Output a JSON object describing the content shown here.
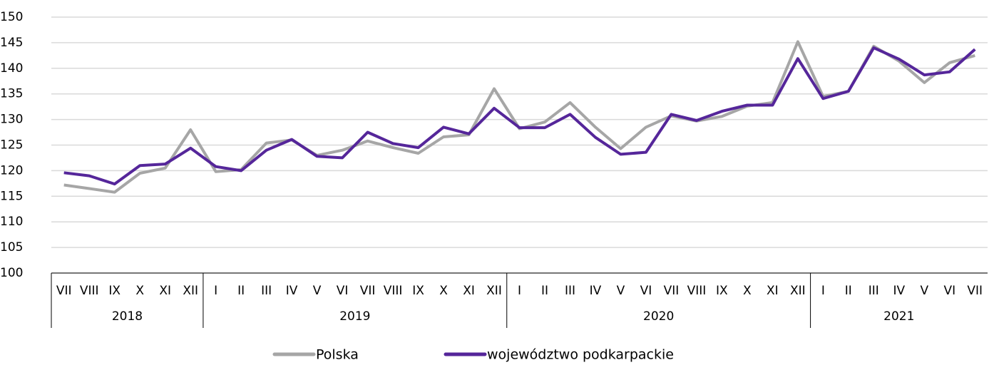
{
  "chart_data": {
    "type": "line",
    "groups": [
      {
        "name": "2018",
        "categories": [
          "VII",
          "VIII",
          "IX",
          "X",
          "XI",
          "XII"
        ]
      },
      {
        "name": "2019",
        "categories": [
          "I",
          "II",
          "III",
          "IV",
          "V",
          "VI",
          "VII",
          "VIII",
          "IX",
          "X",
          "XI",
          "XII"
        ]
      },
      {
        "name": "2020",
        "categories": [
          "I",
          "II",
          "III",
          "IV",
          "V",
          "VI",
          "VII",
          "VIII",
          "IX",
          "X",
          "XI",
          "XII"
        ]
      },
      {
        "name": "2021",
        "categories": [
          "I",
          "II",
          "III",
          "IV",
          "V",
          "VI",
          "VII"
        ]
      }
    ],
    "series": [
      {
        "name": "Polska",
        "color": "#a6a6a6",
        "values": [
          117.2,
          116.5,
          115.8,
          119.5,
          120.5,
          128,
          119.8,
          120.2,
          125.4,
          126,
          123,
          124,
          125.8,
          124.5,
          123.4,
          126.6,
          127,
          136,
          128.2,
          129.5,
          133.3,
          128.5,
          124.3,
          128.5,
          130.7,
          129.7,
          130.6,
          132.6,
          133.3,
          145.2,
          134.5,
          135.5,
          144.3,
          141.4,
          137.2,
          141.1,
          142.5
        ]
      },
      {
        "name": "województwo podkarpackie",
        "color": "#55269a",
        "values": [
          119.6,
          119,
          117.4,
          121,
          121.3,
          124.4,
          120.8,
          120,
          124,
          126.1,
          122.8,
          122.5,
          127.5,
          125.3,
          124.5,
          128.5,
          127.2,
          132.2,
          128.4,
          128.4,
          131,
          126.5,
          123.2,
          123.6,
          131,
          129.8,
          131.6,
          132.8,
          132.8,
          141.9,
          134.1,
          135.5,
          144,
          141.8,
          138.7,
          139.3,
          143.7
        ]
      }
    ],
    "ylim": [
      100,
      150
    ],
    "yticks": [
      100,
      105,
      110,
      115,
      120,
      125,
      130,
      135,
      140,
      145,
      150
    ],
    "grid": true
  }
}
